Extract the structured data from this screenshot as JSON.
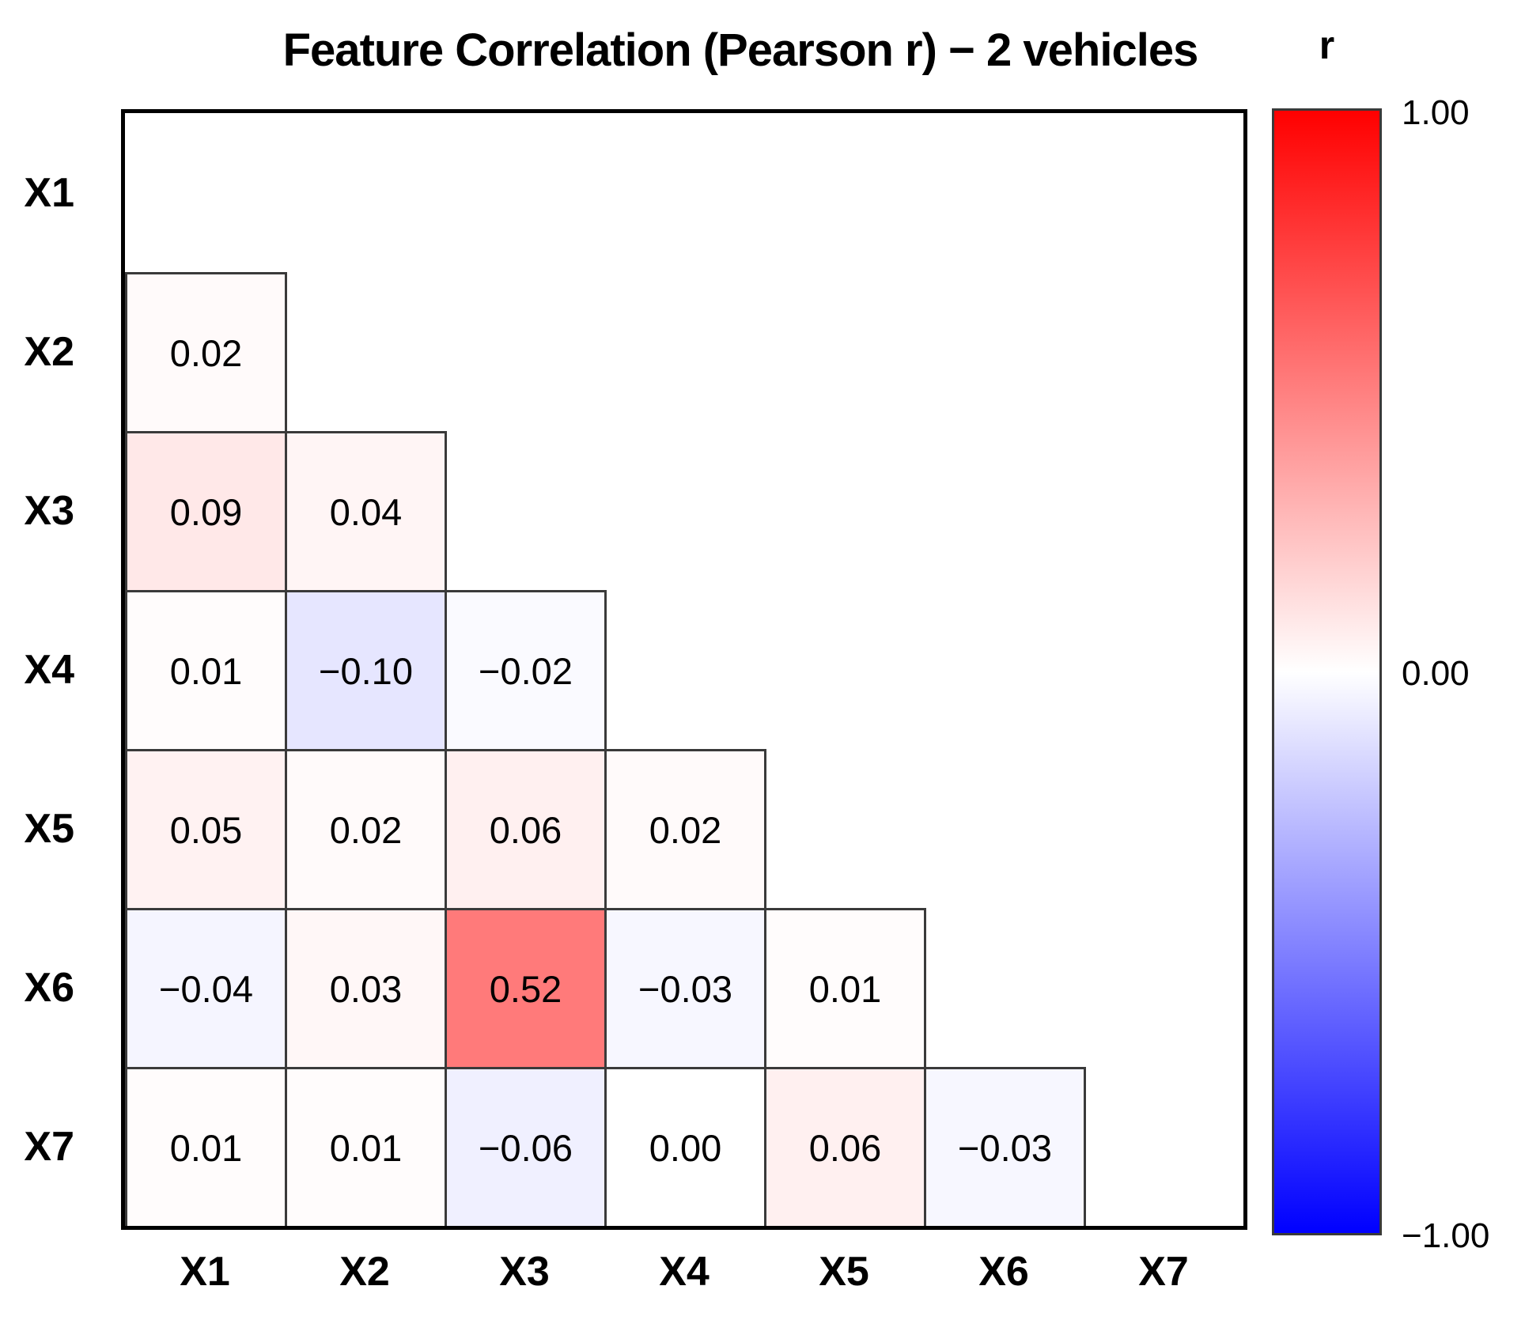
{
  "title": "Feature Correlation (Pearson r) − 2 vehicles",
  "chart_data": {
    "type": "heatmap",
    "title": "Feature Correlation (Pearson r) − 2 vehicles",
    "x_categories": [
      "X1",
      "X2",
      "X3",
      "X4",
      "X5",
      "X6",
      "X7"
    ],
    "y_categories": [
      "X1",
      "X2",
      "X3",
      "X4",
      "X5",
      "X6",
      "X7"
    ],
    "shown_region": "lower triangle, diagonal excluded",
    "value_format": "two decimals, unicode minus",
    "vmin": -1.0,
    "vmax": 1.0,
    "grid": "off",
    "matrix": [
      [
        null,
        null,
        null,
        null,
        null,
        null,
        null
      ],
      [
        0.02,
        null,
        null,
        null,
        null,
        null,
        null
      ],
      [
        0.09,
        0.04,
        null,
        null,
        null,
        null,
        null
      ],
      [
        0.01,
        -0.1,
        -0.02,
        null,
        null,
        null,
        null
      ],
      [
        0.05,
        0.02,
        0.06,
        0.02,
        null,
        null,
        null
      ],
      [
        -0.04,
        0.03,
        0.52,
        -0.03,
        0.01,
        null,
        null
      ],
      [
        0.01,
        0.01,
        -0.06,
        0.0,
        0.06,
        -0.03,
        null
      ]
    ]
  },
  "colorbar": {
    "label": "r",
    "ticks": [
      {
        "label": "1.00",
        "value": 1.0
      },
      {
        "label": "0.00",
        "value": 0.0
      },
      {
        "label": "−1.00",
        "value": -1.0
      }
    ],
    "top_color": "#ff0000",
    "mid_color": "#ffffff",
    "bottom_color": "#0000ff",
    "cell_border_color": "#3a3a3a",
    "axes_border_color": "#000000"
  }
}
